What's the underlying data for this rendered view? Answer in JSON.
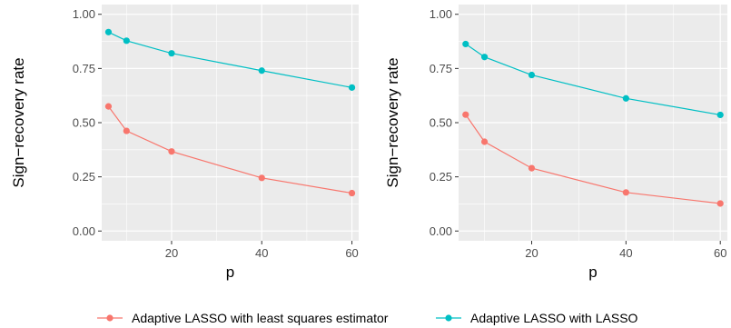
{
  "colors": {
    "panel_bg": "#EBEBEB",
    "grid": "#FFFFFF",
    "tick": "#333333"
  },
  "chart_data": [
    {
      "type": "line",
      "xlabel": "p",
      "ylabel": "Sign−recovery rate",
      "xlim": [
        4.5,
        61.5
      ],
      "ylim": [
        -0.045,
        1.045
      ],
      "xticks": [
        20,
        40,
        60
      ],
      "yticks": [
        0,
        0.25,
        0.5,
        0.75,
        1
      ],
      "ytick_labels": [
        "0.00",
        "0.25",
        "0.50",
        "0.75",
        "1.00"
      ],
      "grid": true,
      "x": [
        6,
        10,
        20,
        40,
        60
      ],
      "series": [
        {
          "name": "Adaptive LASSO with least squares estimator",
          "color": "#F8766D",
          "values": [
            0.575,
            0.462,
            0.367,
            0.245,
            0.175
          ]
        },
        {
          "name": "Adaptive LASSO with LASSO",
          "color": "#00BFC4",
          "values": [
            0.918,
            0.878,
            0.82,
            0.74,
            0.662
          ]
        }
      ]
    },
    {
      "type": "line",
      "xlabel": "p",
      "ylabel": "Sign−recovery rate",
      "xlim": [
        4.5,
        61.5
      ],
      "ylim": [
        -0.045,
        1.045
      ],
      "xticks": [
        20,
        40,
        60
      ],
      "yticks": [
        0,
        0.25,
        0.5,
        0.75,
        1
      ],
      "ytick_labels": [
        "0.00",
        "0.25",
        "0.50",
        "0.75",
        "1.00"
      ],
      "grid": true,
      "x": [
        6,
        10,
        20,
        40,
        60
      ],
      "series": [
        {
          "name": "Adaptive LASSO with least squares estimator",
          "color": "#F8766D",
          "values": [
            0.537,
            0.412,
            0.29,
            0.178,
            0.127
          ]
        },
        {
          "name": "Adaptive LASSO with LASSO",
          "color": "#00BFC4",
          "values": [
            0.863,
            0.803,
            0.72,
            0.612,
            0.536
          ]
        }
      ]
    }
  ],
  "legend": {
    "placement": "bottom",
    "items": [
      {
        "label": "Adaptive LASSO with least squares estimator",
        "color": "#F8766D"
      },
      {
        "label": "Adaptive LASSO with LASSO",
        "color": "#00BFC4"
      }
    ]
  }
}
